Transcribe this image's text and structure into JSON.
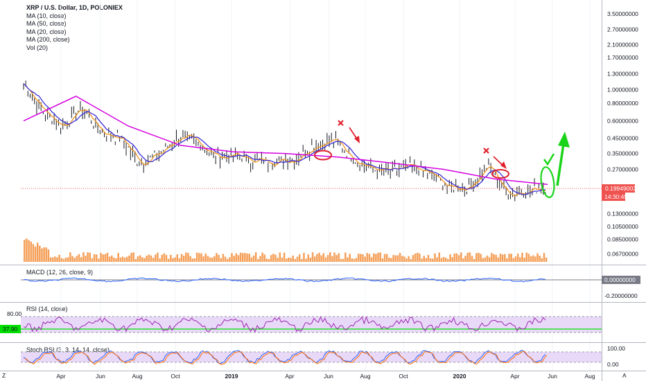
{
  "legend": {
    "title": "XRP / U.S. Dollar, 1D, POLONIEX",
    "lines": [
      "MA (10, close)",
      "MA (50, close)",
      "MA (20, close)",
      "MA (200, close)",
      "Vol (20)"
    ]
  },
  "macd": {
    "label": "MACD (12, 26, close, 9)",
    "ticks": [
      "0.00000000",
      "-0.20000000"
    ]
  },
  "rsi": {
    "label": "RSI (14, close)",
    "ticks": [
      "80.00"
    ],
    "value_tag": "37.90"
  },
  "stoch": {
    "label": "Stoch RSI (3, 3, 14, 14, close)",
    "ticks": [
      "100.00",
      "0.00"
    ]
  },
  "price_axis": {
    "ticks": [
      "3.50000000",
      "2.70000000",
      "2.10000000",
      "1.70000000",
      "1.30000000",
      "1.00000000",
      "0.80000000",
      "0.60000000",
      "0.45000000",
      "0.35000000",
      "0.27000000",
      "0.13000000",
      "0.10500000",
      "0.08500000",
      "0.06700000"
    ],
    "last_price": "0.19949003",
    "countdown": "14:30:45",
    "partial_tick": "0."
  },
  "time_axis": {
    "labels": [
      "Apr",
      "Jun",
      "Aug",
      "Oct",
      "2019",
      "Apr",
      "Jun",
      "Aug",
      "Oct",
      "2020",
      "Apr",
      "Jun",
      "Aug"
    ],
    "left_button": "Z",
    "right_button": "A"
  },
  "colors": {
    "candle": "#131722",
    "ma10": "#f0961e",
    "ma20": "#3a2fd4",
    "ma200": "#d400e0",
    "volume": "#f5a05a",
    "price_line": "#ef5350",
    "annotation_red": "#e0202c",
    "annotation_green": "#19d419",
    "rsi_fill": "#e9d9f9",
    "rsi_line": "#9c27b0",
    "level_line": "#00e000"
  },
  "chart_data": {
    "type": "line",
    "title": "XRP / U.S. Dollar, 1D, POLONIEX",
    "x_range": [
      "2018-02",
      "2020-08"
    ],
    "y_scale": "log",
    "ylim": [
      0.06,
      4.0
    ],
    "series": [
      {
        "name": "close",
        "x": [
          "2018-02",
          "2018-03",
          "2018-04",
          "2018-05",
          "2018-06",
          "2018-07",
          "2018-08",
          "2018-09",
          "2018-10",
          "2018-11",
          "2018-12",
          "2019-01",
          "2019-02",
          "2019-03",
          "2019-04",
          "2019-05",
          "2019-06",
          "2019-07",
          "2019-08",
          "2019-09",
          "2019-10",
          "2019-11",
          "2019-12",
          "2020-01",
          "2020-02",
          "2020-03",
          "2020-04",
          "2020-05"
        ],
        "values": [
          1.1,
          0.7,
          0.55,
          0.75,
          0.5,
          0.45,
          0.3,
          0.35,
          0.46,
          0.42,
          0.33,
          0.34,
          0.31,
          0.31,
          0.32,
          0.4,
          0.44,
          0.33,
          0.27,
          0.26,
          0.28,
          0.25,
          0.2,
          0.2,
          0.29,
          0.18,
          0.19,
          0.2
        ]
      },
      {
        "name": "MA (200, close)",
        "x": [
          "2018-02",
          "2018-06",
          "2018-09",
          "2018-12",
          "2019-03",
          "2019-06",
          "2019-09",
          "2019-12",
          "2020-02",
          "2020-04",
          "2020-05"
        ],
        "values": [
          0.6,
          0.9,
          0.55,
          0.4,
          0.36,
          0.35,
          0.33,
          0.3,
          0.27,
          0.23,
          0.21
        ]
      }
    ],
    "last_price": 0.19949003,
    "rsi_last": 37.9
  }
}
